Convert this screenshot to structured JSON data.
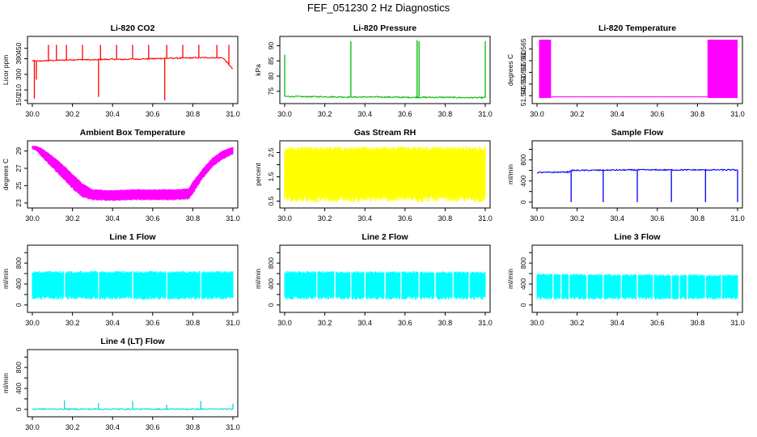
{
  "page": {
    "title": "FEF_051230  2 Hz Diagnostics"
  },
  "chart_data": [
    {
      "type": "line",
      "title": "Li-820 CO2",
      "ylabel": "Licor ppm",
      "color": "#ff0000",
      "xlim": [
        30.0,
        31.0
      ],
      "ylim": [
        150,
        500
      ],
      "xticks": [
        30.0,
        30.2,
        30.4,
        30.6,
        30.8,
        31.0
      ],
      "xtick_labels": [
        "30.0",
        "30.2",
        "30.4",
        "30.6",
        "30.8",
        "31.0"
      ],
      "yticks": [
        150,
        210,
        300,
        390,
        450
      ],
      "ytick_labels": [
        "150",
        "210",
        "300",
        "390",
        "450"
      ],
      "series": [
        {
          "x": [
            30.0,
            30.02,
            30.05,
            30.1,
            30.15,
            30.2,
            30.25,
            30.3,
            30.35,
            30.4,
            30.45,
            30.5,
            30.55,
            30.6,
            30.65,
            30.7,
            30.75,
            30.8,
            30.85,
            30.9,
            30.95,
            31.0
          ],
          "y": [
            380,
            375,
            378,
            380,
            382,
            384,
            385,
            383,
            386,
            387,
            386,
            388,
            389,
            390,
            392,
            393,
            394,
            395,
            396,
            396,
            395,
            330
          ]
        }
      ],
      "spikes": [
        {
          "x": 30.01,
          "y": 160
        },
        {
          "x": 30.02,
          "y": 270
        },
        {
          "x": 30.08,
          "y": 470
        },
        {
          "x": 30.12,
          "y": 470
        },
        {
          "x": 30.17,
          "y": 470
        },
        {
          "x": 30.25,
          "y": 470
        },
        {
          "x": 30.33,
          "y": 170
        },
        {
          "x": 30.34,
          "y": 470
        },
        {
          "x": 30.42,
          "y": 470
        },
        {
          "x": 30.5,
          "y": 470
        },
        {
          "x": 30.58,
          "y": 470
        },
        {
          "x": 30.66,
          "y": 150
        },
        {
          "x": 30.67,
          "y": 470
        },
        {
          "x": 30.75,
          "y": 470
        },
        {
          "x": 30.83,
          "y": 470
        },
        {
          "x": 30.92,
          "y": 470
        },
        {
          "x": 30.98,
          "y": 470
        }
      ]
    },
    {
      "type": "line",
      "title": "Li-820 Pressure",
      "ylabel": "kPa",
      "color": "#00bb00",
      "xlim": [
        30.0,
        31.0
      ],
      "ylim": [
        72.0,
        92.0
      ],
      "xticks": [
        30.0,
        30.2,
        30.4,
        30.6,
        30.8,
        31.0
      ],
      "xtick_labels": [
        "30.0",
        "30.2",
        "30.4",
        "30.6",
        "30.8",
        "31.0"
      ],
      "yticks": [
        75,
        80,
        85,
        90
      ],
      "ytick_labels": [
        "75",
        "80",
        "85",
        "90"
      ],
      "series": [
        {
          "x": [
            30.0,
            30.1,
            30.2,
            30.3,
            30.4,
            30.5,
            30.6,
            30.7,
            30.8,
            30.9,
            31.0
          ],
          "y": [
            73.3,
            73.2,
            73.2,
            73.1,
            73.1,
            73.1,
            73.0,
            73.0,
            73.0,
            72.9,
            72.9
          ]
        }
      ],
      "spikes": [
        {
          "x": 30.0,
          "y": 87.0
        },
        {
          "x": 30.33,
          "y": 91.5
        },
        {
          "x": 30.66,
          "y": 91.8
        },
        {
          "x": 30.67,
          "y": 91.5
        },
        {
          "x": 31.0,
          "y": 91.5
        }
      ]
    },
    {
      "type": "area",
      "title": "Li-820 Temperature",
      "ylabel": "degrees C",
      "color": "#ff00ff",
      "xlim": [
        30.0,
        31.0
      ],
      "ylim": [
        51.543,
        51.569
      ],
      "xticks": [
        30.0,
        30.2,
        30.4,
        30.6,
        30.8,
        31.0
      ],
      "xtick_labels": [
        "30.0",
        "30.2",
        "30.4",
        "30.6",
        "30.8",
        "31.0"
      ],
      "yticks": [
        51.545,
        51.55,
        51.555,
        51.56,
        51.565
      ],
      "ytick_labels": [
        "51.545",
        "51.550",
        "51.555",
        "51.560",
        "51.565"
      ],
      "bands": [
        {
          "x0": 30.01,
          "x1": 30.07,
          "ymin": 51.544,
          "ymax": 51.569
        },
        {
          "x0": 30.85,
          "x1": 31.0,
          "ymin": 51.544,
          "ymax": 51.569
        }
      ],
      "baseline": 51.5445
    },
    {
      "type": "area",
      "title": "Ambient Box Temperature",
      "ylabel": "degrees C",
      "color": "#ff00ff",
      "xlim": [
        30.0,
        31.0
      ],
      "ylim": [
        22.8,
        29.8
      ],
      "xticks": [
        30.0,
        30.2,
        30.4,
        30.6,
        30.8,
        31.0
      ],
      "xtick_labels": [
        "30.0",
        "30.2",
        "30.4",
        "30.6",
        "30.8",
        "31.0"
      ],
      "yticks": [
        23,
        25,
        27,
        29
      ],
      "ytick_labels": [
        "23",
        "25",
        "27",
        "29"
      ],
      "upper": {
        "x": [
          30.0,
          30.02,
          30.05,
          30.1,
          30.15,
          30.2,
          30.25,
          30.3,
          30.4,
          30.5,
          30.6,
          30.7,
          30.78,
          30.8,
          30.85,
          30.9,
          30.95,
          31.0
        ],
        "y": [
          29.6,
          29.6,
          29.3,
          28.5,
          27.5,
          26.4,
          25.3,
          24.6,
          24.5,
          24.6,
          24.6,
          24.6,
          24.7,
          25.5,
          27.0,
          28.3,
          29.1,
          29.5
        ]
      },
      "lower": {
        "x": [
          30.0,
          30.02,
          30.05,
          30.1,
          30.15,
          30.2,
          30.25,
          30.3,
          30.4,
          30.5,
          30.6,
          30.7,
          30.78,
          30.8,
          30.85,
          30.9,
          30.95,
          31.0
        ],
        "y": [
          29.2,
          29.0,
          28.2,
          27.0,
          25.8,
          24.6,
          23.6,
          23.3,
          23.2,
          23.3,
          23.3,
          23.3,
          23.4,
          24.0,
          25.8,
          27.2,
          28.0,
          28.6
        ]
      }
    },
    {
      "type": "area",
      "title": "Gas Stream RH",
      "ylabel": "percent",
      "color": "#ffff00",
      "xlim": [
        30.0,
        31.0
      ],
      "ylim": [
        0.35,
        2.85
      ],
      "xticks": [
        30.0,
        30.2,
        30.4,
        30.6,
        30.8,
        31.0
      ],
      "xtick_labels": [
        "30.0",
        "30.2",
        "30.4",
        "30.6",
        "30.8",
        "31.0"
      ],
      "yticks": [
        0.5,
        1.0,
        1.5,
        2.0,
        2.5
      ],
      "ytick_labels": [
        "0.5",
        "1.5",
        "2.5"
      ],
      "upper": {
        "x": [
          30.0,
          31.0
        ],
        "y": [
          2.75,
          2.75
        ]
      },
      "lower": {
        "x": [
          30.0,
          31.0
        ],
        "y": [
          0.45,
          0.45
        ]
      }
    },
    {
      "type": "line",
      "title": "Sample Flow",
      "ylabel": "ml/min",
      "color": "#0000ff",
      "xlim": [
        30.0,
        31.0
      ],
      "ylim": [
        -50,
        1100
      ],
      "xticks": [
        30.0,
        30.2,
        30.4,
        30.6,
        30.8,
        31.0
      ],
      "xtick_labels": [
        "30.0",
        "30.2",
        "30.4",
        "30.6",
        "30.8",
        "31.0"
      ],
      "yticks": [
        0,
        200,
        400,
        600,
        800,
        1000
      ],
      "ytick_labels": [
        "0",
        "400",
        "800"
      ],
      "series": [
        {
          "x": [
            30.0,
            30.16,
            30.17,
            30.33,
            30.5,
            30.67,
            30.84,
            31.0
          ],
          "y": [
            560,
            570,
            600,
            605,
            610,
            610,
            610,
            610
          ]
        }
      ],
      "spikes": [
        {
          "x": 30.17,
          "y": 0
        },
        {
          "x": 30.33,
          "y": 0
        },
        {
          "x": 30.5,
          "y": 0
        },
        {
          "x": 30.67,
          "y": 0
        },
        {
          "x": 30.84,
          "y": 0
        },
        {
          "x": 31.0,
          "y": 0
        }
      ]
    },
    {
      "type": "area",
      "title": "Line 1 Flow",
      "ylabel": "ml/min",
      "color": "#00ffff",
      "xlim": [
        30.0,
        31.0
      ],
      "ylim": [
        -80,
        1080
      ],
      "xticks": [
        30.0,
        30.2,
        30.4,
        30.6,
        30.8,
        31.0
      ],
      "xtick_labels": [
        "30.0",
        "30.2",
        "30.4",
        "30.6",
        "30.8",
        "31.0"
      ],
      "yticks": [
        0,
        200,
        400,
        600,
        800,
        1000
      ],
      "ytick_labels": [
        "0",
        "400",
        "800"
      ],
      "upper": {
        "x": [
          30.0,
          31.0
        ],
        "y": [
          650,
          650
        ]
      },
      "lower": {
        "x": [
          30.0,
          31.0
        ],
        "y": [
          100,
          100
        ]
      },
      "gaps": [
        30.16,
        30.33,
        30.5,
        30.67,
        30.84
      ]
    },
    {
      "type": "area",
      "title": "Line 2 Flow",
      "ylabel": "ml/min",
      "color": "#00ffff",
      "xlim": [
        30.0,
        31.0
      ],
      "ylim": [
        -80,
        1080
      ],
      "xticks": [
        30.0,
        30.2,
        30.4,
        30.6,
        30.8,
        31.0
      ],
      "xtick_labels": [
        "30.0",
        "30.2",
        "30.4",
        "30.6",
        "30.8",
        "31.0"
      ],
      "yticks": [
        0,
        200,
        400,
        600,
        800,
        1000
      ],
      "ytick_labels": [
        "0",
        "400",
        "800"
      ],
      "upper": {
        "x": [
          30.0,
          31.0
        ],
        "y": [
          650,
          640
        ]
      },
      "lower": {
        "x": [
          30.0,
          31.0
        ],
        "y": [
          100,
          100
        ]
      },
      "gaps": [
        30.16,
        30.25,
        30.33,
        30.4,
        30.5,
        30.58,
        30.67,
        30.75,
        30.84,
        30.92
      ]
    },
    {
      "type": "area",
      "title": "Line 3 Flow",
      "ylabel": "ml/min",
      "color": "#00ffff",
      "xlim": [
        30.0,
        31.0
      ],
      "ylim": [
        -80,
        1080
      ],
      "xticks": [
        30.0,
        30.2,
        30.4,
        30.6,
        30.8,
        31.0
      ],
      "xtick_labels": [
        "30.0",
        "30.2",
        "30.4",
        "30.6",
        "30.8",
        "31.0"
      ],
      "yticks": [
        0,
        200,
        400,
        600,
        800,
        1000
      ],
      "ytick_labels": [
        "0",
        "400",
        "800"
      ],
      "upper": {
        "x": [
          30.0,
          31.0
        ],
        "y": [
          600,
          580
        ]
      },
      "lower": {
        "x": [
          30.0,
          31.0
        ],
        "y": [
          100,
          100
        ]
      },
      "gaps": [
        30.08,
        30.12,
        30.16,
        30.25,
        30.33,
        30.42,
        30.5,
        30.58,
        30.67,
        30.71,
        30.75,
        30.84,
        30.92
      ]
    },
    {
      "type": "line",
      "title": "Line 4 (LT) Flow",
      "ylabel": "ml/min",
      "color": "#00dddd",
      "xlim": [
        30.0,
        31.0
      ],
      "ylim": [
        -80,
        1080
      ],
      "xticks": [
        30.0,
        30.2,
        30.4,
        30.6,
        30.8,
        31.0
      ],
      "xtick_labels": [
        "30.0",
        "30.2",
        "30.4",
        "30.6",
        "30.8",
        "31.0"
      ],
      "yticks": [
        0,
        200,
        400,
        600,
        800,
        1000
      ],
      "ytick_labels": [
        "0",
        "400",
        "800"
      ],
      "series": [
        {
          "x": [
            30.0,
            31.0
          ],
          "y": [
            5,
            5
          ]
        }
      ],
      "spikes": [
        {
          "x": 30.16,
          "y": 170
        },
        {
          "x": 30.33,
          "y": 120
        },
        {
          "x": 30.5,
          "y": 160
        },
        {
          "x": 30.67,
          "y": 90
        },
        {
          "x": 30.84,
          "y": 160
        },
        {
          "x": 31.0,
          "y": 110
        }
      ]
    }
  ]
}
